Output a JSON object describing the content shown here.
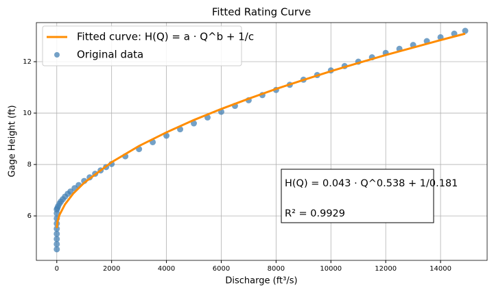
{
  "chart_data": {
    "type": "line",
    "title": "Fitted Rating Curve",
    "x_label": "Discharge (ft³/s)",
    "y_label": "Gage Height (ft)",
    "xlim": [
      -745,
      15700
    ],
    "ylim": [
      4.27,
      13.52
    ],
    "xticks": [
      0,
      2000,
      4000,
      6000,
      8000,
      10000,
      12000,
      14000
    ],
    "yticks": [
      6,
      8,
      10,
      12
    ],
    "grid": true,
    "legend": "upper left",
    "annotations": [
      "H(Q) = 0.043 · Q^0.538 + 1/0.181",
      "R² = 0.9929"
    ],
    "series": [
      {
        "name": "Fitted curve: H(Q) = a · Q^b + 1/c",
        "type": "line",
        "color": "#ff8c00",
        "x": [
          0,
          25,
          100,
          300,
          600,
          1000,
          2000,
          3000,
          4000,
          5000,
          6000,
          7000,
          8000,
          9000,
          10000,
          11000,
          12000,
          13000,
          14000,
          14900
        ],
        "values": [
          5.53,
          5.77,
          6.04,
          6.45,
          6.87,
          7.29,
          8.09,
          8.72,
          9.25,
          9.73,
          10.16,
          10.56,
          10.94,
          11.29,
          11.63,
          11.95,
          12.26,
          12.55,
          12.84,
          13.09
        ]
      },
      {
        "name": "Original data",
        "type": "scatter",
        "color": "#4682b4",
        "x": [
          0,
          0,
          0,
          0,
          0,
          0,
          0,
          0,
          0,
          20,
          50,
          100,
          150,
          220,
          300,
          400,
          500,
          650,
          800,
          1000,
          1200,
          1400,
          1600,
          1800,
          2000,
          2500,
          3000,
          3500,
          4000,
          4500,
          5000,
          5500,
          6000,
          6500,
          7000,
          7500,
          8000,
          8500,
          9000,
          9500,
          10000,
          10500,
          11000,
          11500,
          12000,
          12500,
          13000,
          13500,
          14000,
          14500,
          14900
        ],
        "values": [
          4.7,
          4.9,
          5.1,
          5.3,
          5.5,
          5.7,
          5.9,
          6.1,
          6.25,
          6.3,
          6.38,
          6.48,
          6.56,
          6.65,
          6.75,
          6.86,
          6.95,
          7.08,
          7.2,
          7.36,
          7.5,
          7.64,
          7.77,
          7.9,
          8.02,
          8.32,
          8.6,
          8.87,
          9.12,
          9.37,
          9.6,
          9.83,
          10.05,
          10.28,
          10.5,
          10.7,
          10.9,
          11.1,
          11.3,
          11.48,
          11.66,
          11.83,
          12.0,
          12.17,
          12.34,
          12.5,
          12.65,
          12.8,
          12.95,
          13.09,
          13.2
        ]
      }
    ]
  }
}
